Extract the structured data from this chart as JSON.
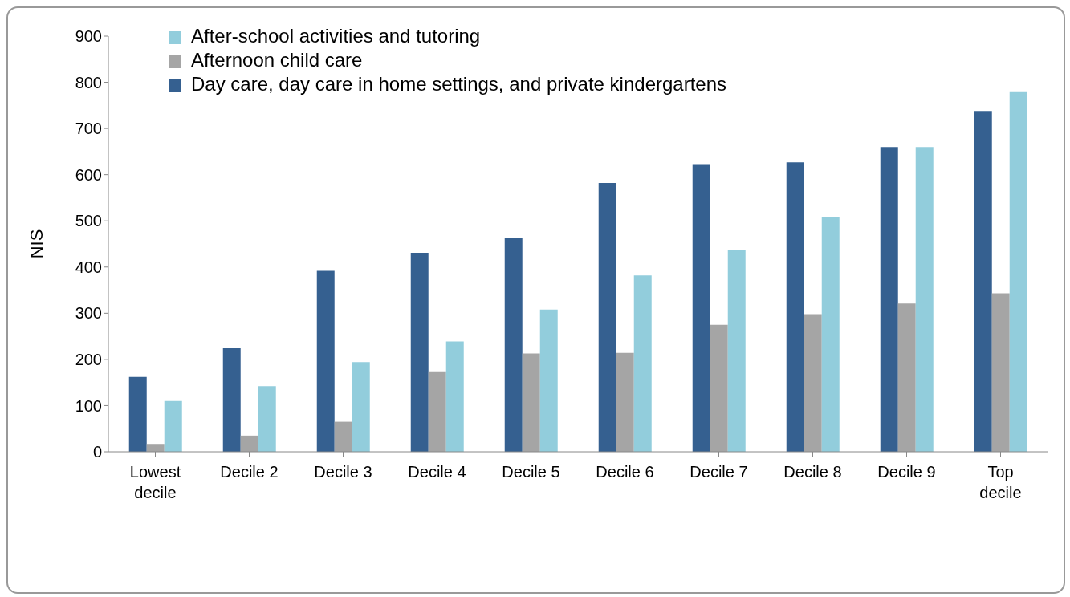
{
  "chart_data": {
    "type": "bar",
    "ylabel": "NIS",
    "categories": [
      "Lowest decile",
      "Decile 2",
      "Decile 3",
      "Decile 4",
      "Decile 5",
      "Decile 6",
      "Decile 7",
      "Decile 8",
      "Decile 9",
      "Top decile"
    ],
    "series": [
      {
        "name": "Day care, day care in home settings, and private kindergartens",
        "color": "#356090",
        "values": [
          162,
          224,
          392,
          431,
          463,
          582,
          621,
          627,
          660,
          738
        ]
      },
      {
        "name": "Afternoon child care",
        "color": "#a5a5a5",
        "values": [
          17,
          35,
          65,
          174,
          213,
          214,
          275,
          298,
          321,
          343
        ]
      },
      {
        "name": "After-school activities and tutoring",
        "color": "#92cddc",
        "values": [
          110,
          142,
          194,
          239,
          308,
          382,
          437,
          509,
          660,
          779
        ]
      }
    ],
    "ylim": [
      0,
      900
    ],
    "yticks": [
      0,
      100,
      200,
      300,
      400,
      500,
      600,
      700,
      800,
      900
    ],
    "grid": false,
    "legend": "top left"
  }
}
